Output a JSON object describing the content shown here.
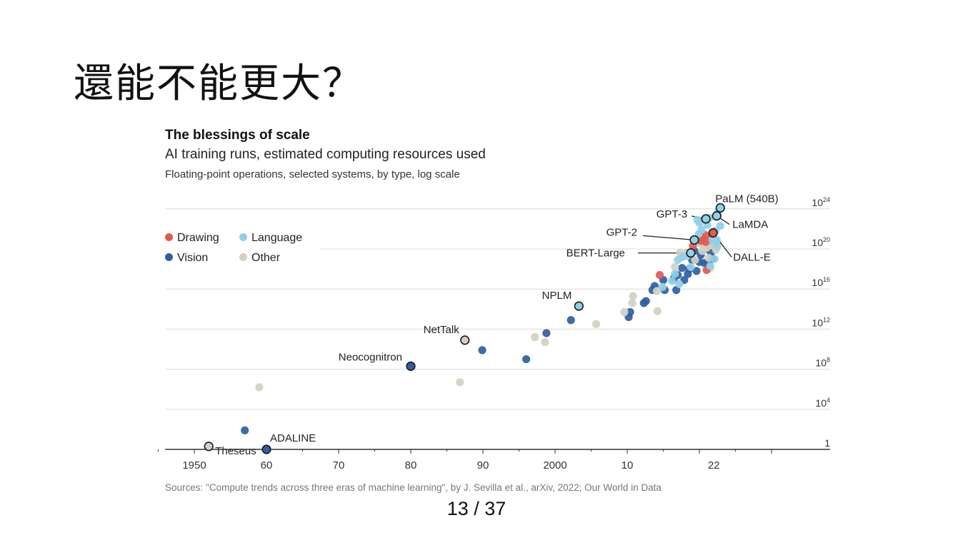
{
  "slide": {
    "title": "還能不能更大？",
    "page_number": "13 / 37"
  },
  "chart_data": {
    "type": "scatter",
    "title": "The blessings of scale",
    "subtitle": "AI training runs, estimated computing resources used",
    "note": "Floating-point operations, selected systems, by type, log scale",
    "source": "Sources: \"Compute trends across three eras of machine learning\", by J. Sevilla et al., arXiv, 2022; Our World in Data",
    "y_scale": "log10",
    "xlim": [
      1942,
      2030
    ],
    "ylim_log10": [
      0,
      24.8
    ],
    "x_ticks": [
      {
        "value": 1950,
        "label": "1950"
      },
      {
        "value": 1960,
        "label": "60"
      },
      {
        "value": 1970,
        "label": "70"
      },
      {
        "value": 1980,
        "label": "80"
      },
      {
        "value": 1990,
        "label": "90"
      },
      {
        "value": 2000,
        "label": "2000"
      },
      {
        "value": 2010,
        "label": "10"
      },
      {
        "value": 2022,
        "label": "22"
      }
    ],
    "y_ticks": [
      {
        "exp": 0,
        "label": "1",
        "sup": ""
      },
      {
        "exp": 4,
        "label": "10",
        "sup": "4"
      },
      {
        "exp": 8,
        "label": "10",
        "sup": "8"
      },
      {
        "exp": 12,
        "label": "10",
        "sup": "12"
      },
      {
        "exp": 16,
        "label": "10",
        "sup": "16"
      },
      {
        "exp": 20,
        "label": "10",
        "sup": "20"
      },
      {
        "exp": 24,
        "label": "10",
        "sup": "24"
      }
    ],
    "legend": [
      {
        "key": "drawing",
        "name": "Drawing",
        "color": "#e05a50"
      },
      {
        "key": "language",
        "name": "Language",
        "color": "#8fd0e6"
      },
      {
        "key": "vision",
        "name": "Vision",
        "color": "#2f5ea2"
      },
      {
        "key": "other",
        "name": "Other",
        "color": "#d3d0c4"
      }
    ],
    "series": [
      {
        "key": "vision",
        "points": [
          [
            1957,
            1.9
          ],
          [
            1960,
            0.0
          ],
          [
            1980,
            8.3
          ],
          [
            1989.9,
            9.9
          ],
          [
            1996,
            9.0
          ],
          [
            1998.8,
            11.6
          ],
          [
            2002.2,
            12.9
          ],
          [
            2010.2,
            13.2
          ],
          [
            2010.4,
            13.7
          ],
          [
            2012.3,
            14.6
          ],
          [
            2012.6,
            14.8
          ],
          [
            2013.5,
            15.9
          ],
          [
            2013.8,
            16.3
          ],
          [
            2015,
            16.9
          ],
          [
            2015.2,
            15.9
          ],
          [
            2016.5,
            17.1
          ],
          [
            2016.8,
            15.9
          ],
          [
            2017,
            17.4
          ],
          [
            2017.6,
            18.1
          ],
          [
            2017.9,
            16.9
          ],
          [
            2018.4,
            17.5
          ],
          [
            2018.6,
            18.0
          ],
          [
            2019.0,
            18.9
          ],
          [
            2019.3,
            19.8
          ],
          [
            2019.6,
            17.8
          ],
          [
            2020.0,
            18.7
          ],
          [
            2020.2,
            19.4
          ],
          [
            2020.7,
            18.6
          ],
          [
            2020.8,
            20.0
          ],
          [
            2021.2,
            18.6
          ],
          [
            2021.6,
            19.6
          ],
          [
            2021.8,
            19.0
          ],
          [
            2022.0,
            20.5
          ]
        ]
      },
      {
        "key": "other",
        "points": [
          [
            1959,
            6.2
          ],
          [
            1986.8,
            6.7
          ],
          [
            1997.2,
            11.2
          ],
          [
            1998.6,
            10.7
          ],
          [
            2005.7,
            12.5
          ],
          [
            2009.6,
            13.7
          ],
          [
            2010.7,
            14.6
          ],
          [
            2010.8,
            15.3
          ],
          [
            2014.1,
            15.8
          ],
          [
            2014.2,
            13.8
          ],
          [
            2016.6,
            18.2
          ],
          [
            2017.3,
            19.6
          ],
          [
            2018.1,
            19.6
          ],
          [
            2019.4,
            18.9
          ],
          [
            2020.0,
            20.6
          ],
          [
            2020.4,
            19.8
          ],
          [
            2020.6,
            20.2
          ],
          [
            2021.0,
            20.1
          ],
          [
            2021.3,
            19.1
          ],
          [
            2021.5,
            18.1
          ],
          [
            2021.9,
            20.4
          ],
          [
            2022.3,
            19.9
          ]
        ]
      },
      {
        "key": "drawing",
        "points": [
          [
            2014.5,
            17.4
          ],
          [
            2019.1,
            20.3
          ],
          [
            2020.4,
            21.1
          ],
          [
            2020.8,
            21.4
          ],
          [
            2021.1,
            21.0
          ],
          [
            2020.2,
            20.8
          ],
          [
            2020.9,
            20.7
          ],
          [
            2021.0,
            17.9
          ]
        ]
      },
      {
        "key": "language",
        "points": [
          [
            2014.9,
            16.2
          ],
          [
            2016.2,
            16.8
          ],
          [
            2016.6,
            17.5
          ],
          [
            2017.0,
            18.9
          ],
          [
            2017.7,
            19.2
          ],
          [
            2018.3,
            19.3
          ],
          [
            2018.8,
            18.2
          ],
          [
            2019.4,
            21.0
          ],
          [
            2019.9,
            21.5
          ],
          [
            2020.0,
            22.6
          ],
          [
            2020.3,
            21.9
          ],
          [
            2021.1,
            22.4
          ],
          [
            2021.4,
            23.1
          ],
          [
            2021.8,
            20.9
          ],
          [
            2022.1,
            19.0
          ],
          [
            2022.2,
            21.8
          ],
          [
            2022.5,
            20.3
          ],
          [
            2022.6,
            23.7
          ],
          [
            2021.5,
            18.3
          ],
          [
            2019.7,
            22.9
          ],
          [
            2022.9,
            22.3
          ],
          [
            2022.4,
            20.9
          ],
          [
            2017.2,
            16.5
          ]
        ]
      }
    ],
    "annotations": [
      {
        "name": "Theseus",
        "key": "other",
        "x": 1952,
        "y": 0.3
      },
      {
        "name": "ADALINE",
        "key": "vision",
        "x": 1960,
        "y": 0.0
      },
      {
        "name": "Neocognitron",
        "key": "vision",
        "x": 1980,
        "y": 8.3
      },
      {
        "name": "NetTalk",
        "key": "other",
        "x": 1987.5,
        "y": 10.9
      },
      {
        "name": "NPLM",
        "key": "language",
        "x": 2003.3,
        "y": 14.3
      },
      {
        "name": "BERT-Large",
        "key": "language",
        "x": 2018.8,
        "y": 19.6
      },
      {
        "name": "GPT-2",
        "key": "language",
        "x": 2019.3,
        "y": 20.9
      },
      {
        "name": "GPT-3",
        "key": "language",
        "x": 2020.9,
        "y": 23.0
      },
      {
        "name": "DALL-E",
        "key": "drawing",
        "x": 2021.9,
        "y": 21.6
      },
      {
        "name": "LaMDA",
        "key": "language",
        "x": 2022.4,
        "y": 23.3
      },
      {
        "name": "PaLM (540B)",
        "key": "language",
        "x": 2022.9,
        "y": 24.1
      }
    ]
  }
}
